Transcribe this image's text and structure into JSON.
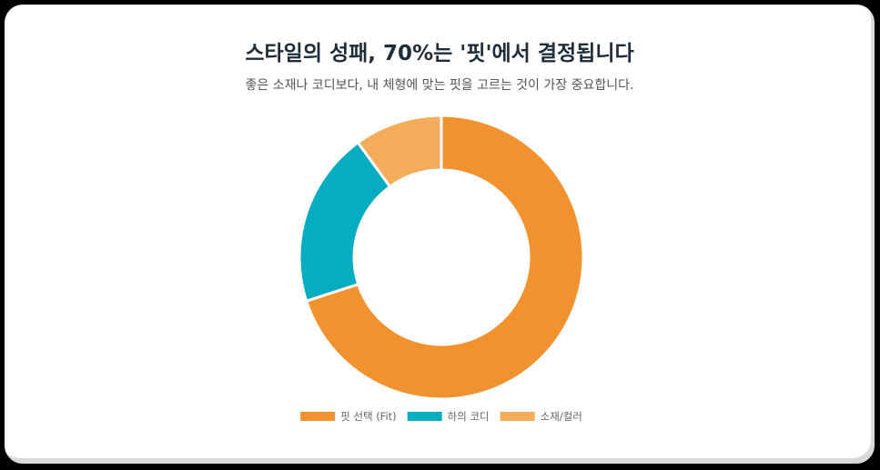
{
  "header": {
    "title": "스타일의 성패, 70%는 '핏'에서 결정됩니다",
    "subtitle": "좋은 소재나 코디보다, 내 체형에 맞는 핏을 고르는 것이 가장 중요합니다."
  },
  "chart_data": {
    "type": "pie",
    "variant": "doughnut",
    "title": "스타일의 성패, 70%는 '핏'에서 결정됩니다",
    "subtitle": "좋은 소재나 코디보다, 내 체형에 맞는 핏을 고르는 것이 가장 중요합니다.",
    "categories": [
      "핏 선택 (Fit)",
      "하의 코디",
      "소재/컬러"
    ],
    "values": [
      70,
      20,
      10
    ],
    "unit": "%",
    "colors": [
      "#F2922F",
      "#06ADC0",
      "#F2AC5A"
    ],
    "legend_position": "bottom"
  }
}
